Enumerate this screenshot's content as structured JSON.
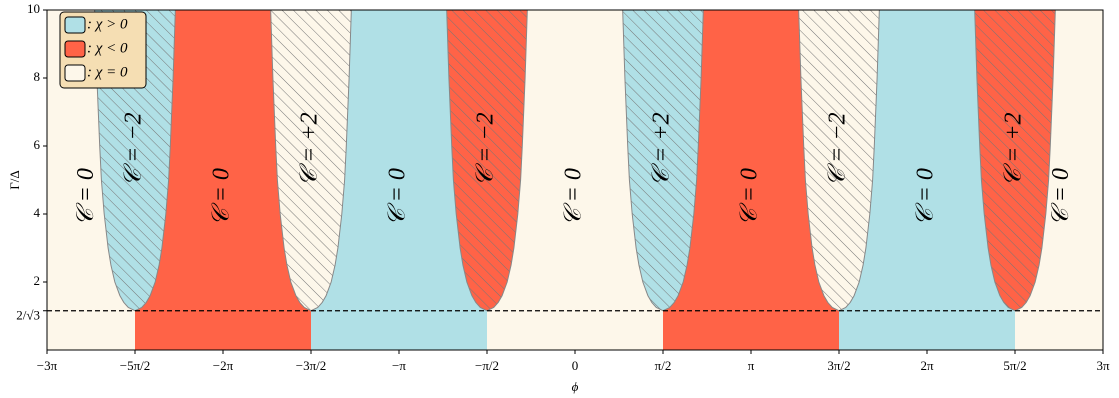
{
  "chart_data": {
    "type": "phase",
    "x_label": "ϕ",
    "y_label": "Γ/Δ",
    "xlim": [
      -9.42477796,
      9.42477796
    ],
    "ylim": [
      0,
      10
    ],
    "xticks": [
      {
        "value": -9.42477796,
        "label": "−3π"
      },
      {
        "value": -7.85398163,
        "label": "−5π/2"
      },
      {
        "value": -6.28318531,
        "label": "−2π"
      },
      {
        "value": -4.71238898,
        "label": "−3π/2"
      },
      {
        "value": -3.14159265,
        "label": "−π"
      },
      {
        "value": -1.57079633,
        "label": "−π/2"
      },
      0,
      {
        "value": 1.57079633,
        "label": "π/2"
      },
      {
        "value": 3.14159265,
        "label": "π"
      },
      {
        "value": 4.71238898,
        "label": "3π/2"
      },
      {
        "value": 6.28318531,
        "label": "2π"
      },
      {
        "value": 7.85398163,
        "label": "5π/2"
      },
      {
        "value": 9.42477796,
        "label": "3π"
      }
    ],
    "yticks": [
      {
        "value": 1.1547,
        "label": "2/√3"
      },
      2,
      4,
      6,
      8,
      10
    ],
    "threshold": 1.1547,
    "colors": {
      "positive": "#b0e0e6",
      "negative": "#ff6347",
      "zero": "#fdf7ea"
    },
    "legend": {
      "position": "upper left",
      "entries": [
        {
          "color": "#b0e0e6",
          "label": ": χ > 0"
        },
        {
          "color": "#ff6347",
          "label": ": χ < 0"
        },
        {
          "color": "#fdf7ea",
          "label": ": χ = 0"
        }
      ]
    },
    "bands": [
      {
        "x0": -9.42477796,
        "x1": -7.85398163,
        "color": "#fdf7ea"
      },
      {
        "x0": -7.85398163,
        "x1": -4.71238898,
        "color": "#ff6347"
      },
      {
        "x0": -4.71238898,
        "x1": -1.57079633,
        "color": "#b0e0e6"
      },
      {
        "x0": -1.57079633,
        "x1": 1.57079633,
        "color": "#fdf7ea"
      },
      {
        "x0": 1.57079633,
        "x1": 4.71238898,
        "color": "#ff6347"
      },
      {
        "x0": 4.71238898,
        "x1": 7.85398163,
        "color": "#b0e0e6"
      },
      {
        "x0": 7.85398163,
        "x1": 9.42477796,
        "color": "#fdf7ea"
      }
    ],
    "boundary": {
      "y": [
        1.1547,
        1.25,
        1.4,
        1.6,
        2,
        2.5,
        3,
        4,
        5,
        6,
        8,
        10
      ],
      "half_width": [
        0,
        0.12,
        0.2,
        0.27,
        0.36,
        0.43,
        0.48,
        0.55,
        0.6,
        0.63,
        0.68,
        0.72
      ]
    },
    "lobes": [
      {
        "center": -7.85398163,
        "color": "#b0e0e6",
        "label": "𝒞 = −2"
      },
      {
        "center": -4.71238898,
        "color": "#fdf7ea",
        "label": "𝒞 = +2"
      },
      {
        "center": -1.57079633,
        "color": "#ff6347",
        "label": "𝒞 = −2"
      },
      {
        "center": 1.57079633,
        "color": "#b0e0e6",
        "label": "𝒞 = +2"
      },
      {
        "center": 4.71238898,
        "color": "#fdf7ea",
        "label": "𝒞 = −2"
      },
      {
        "center": 7.85398163,
        "color": "#ff6347",
        "label": "𝒞 = +2"
      }
    ],
    "lobe_label_y": 5.9,
    "region_labels": [
      {
        "x": -8.7,
        "y": 4.5,
        "text": "𝒞 = 0"
      },
      {
        "x": -6.28318531,
        "y": 4.5,
        "text": "𝒞 = 0"
      },
      {
        "x": -3.14159265,
        "y": 4.5,
        "text": "𝒞 = 0"
      },
      {
        "x": 0,
        "y": 4.5,
        "text": "𝒞 = 0"
      },
      {
        "x": 3.14159265,
        "y": 4.5,
        "text": "𝒞 = 0"
      },
      {
        "x": 6.28318531,
        "y": 4.5,
        "text": "𝒞 = 0"
      },
      {
        "x": 8.7,
        "y": 4.5,
        "text": "𝒞 = 0"
      }
    ]
  }
}
